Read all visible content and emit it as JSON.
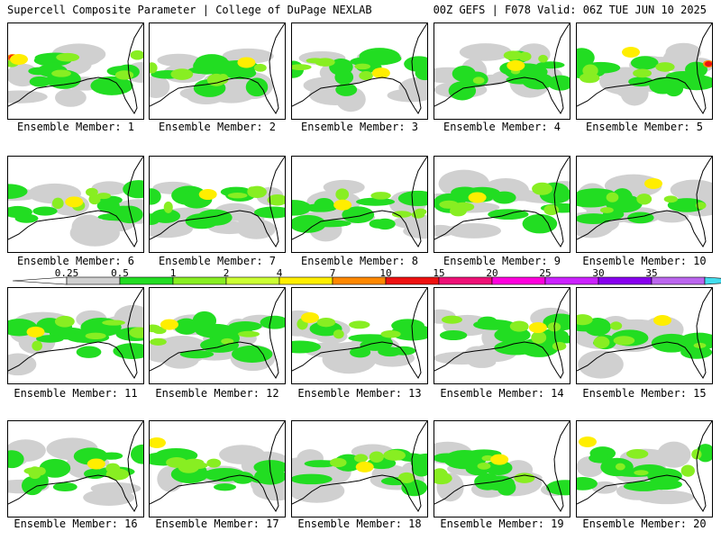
{
  "header": {
    "left": "Supercell Composite Parameter | College of DuPage NEXLAB",
    "right": "00Z GEFS | F078 Valid: 06Z TUE JUN 10 2025"
  },
  "panels": [
    {
      "label": "Ensemble Member: 1"
    },
    {
      "label": "Ensemble Member: 2"
    },
    {
      "label": "Ensemble Member: 3"
    },
    {
      "label": "Ensemble Member: 4"
    },
    {
      "label": "Ensemble Member: 5"
    },
    {
      "label": "Ensemble Member: 6"
    },
    {
      "label": "Ensemble Member: 7"
    },
    {
      "label": "Ensemble Member: 8"
    },
    {
      "label": "Ensemble Member: 9"
    },
    {
      "label": "Ensemble Member: 10"
    },
    {
      "label": "Ensemble Member: 11"
    },
    {
      "label": "Ensemble Member: 12"
    },
    {
      "label": "Ensemble Member: 13"
    },
    {
      "label": "Ensemble Member: 14"
    },
    {
      "label": "Ensemble Member: 15"
    },
    {
      "label": "Ensemble Member: 16"
    },
    {
      "label": "Ensemble Member: 17"
    },
    {
      "label": "Ensemble Member: 18"
    },
    {
      "label": "Ensemble Member: 19"
    },
    {
      "label": "Ensemble Member: 20"
    }
  ],
  "legend": {
    "ticks": [
      "0.25",
      "0.5",
      "1",
      "2",
      "4",
      "7",
      "10",
      "15",
      "20",
      "25",
      "30",
      "35"
    ],
    "colors": [
      "#d0d0d0",
      "#22dd22",
      "#88ee22",
      "#ccff33",
      "#ffee00",
      "#ff8800",
      "#ee1111",
      "#ee1177",
      "#ff00dd",
      "#cc22ff",
      "#8800ee",
      "#bb66ee",
      "#44ddee"
    ]
  },
  "colors": {
    "gray": "#d0d0d0",
    "green": "#22dd22",
    "lime": "#88ee22",
    "yellow": "#ffee00",
    "orange": "#ff8800",
    "red": "#ee1111"
  }
}
